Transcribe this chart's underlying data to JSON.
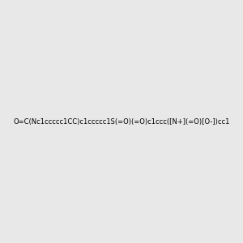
{
  "smiles": "O=C(Nc1ccccc1CC)c1ccccc1S(=O)(=O)c1ccc([N+](=O)[O-])cc1",
  "image_size": 300,
  "background_color": "#e8e8e8",
  "title": ""
}
